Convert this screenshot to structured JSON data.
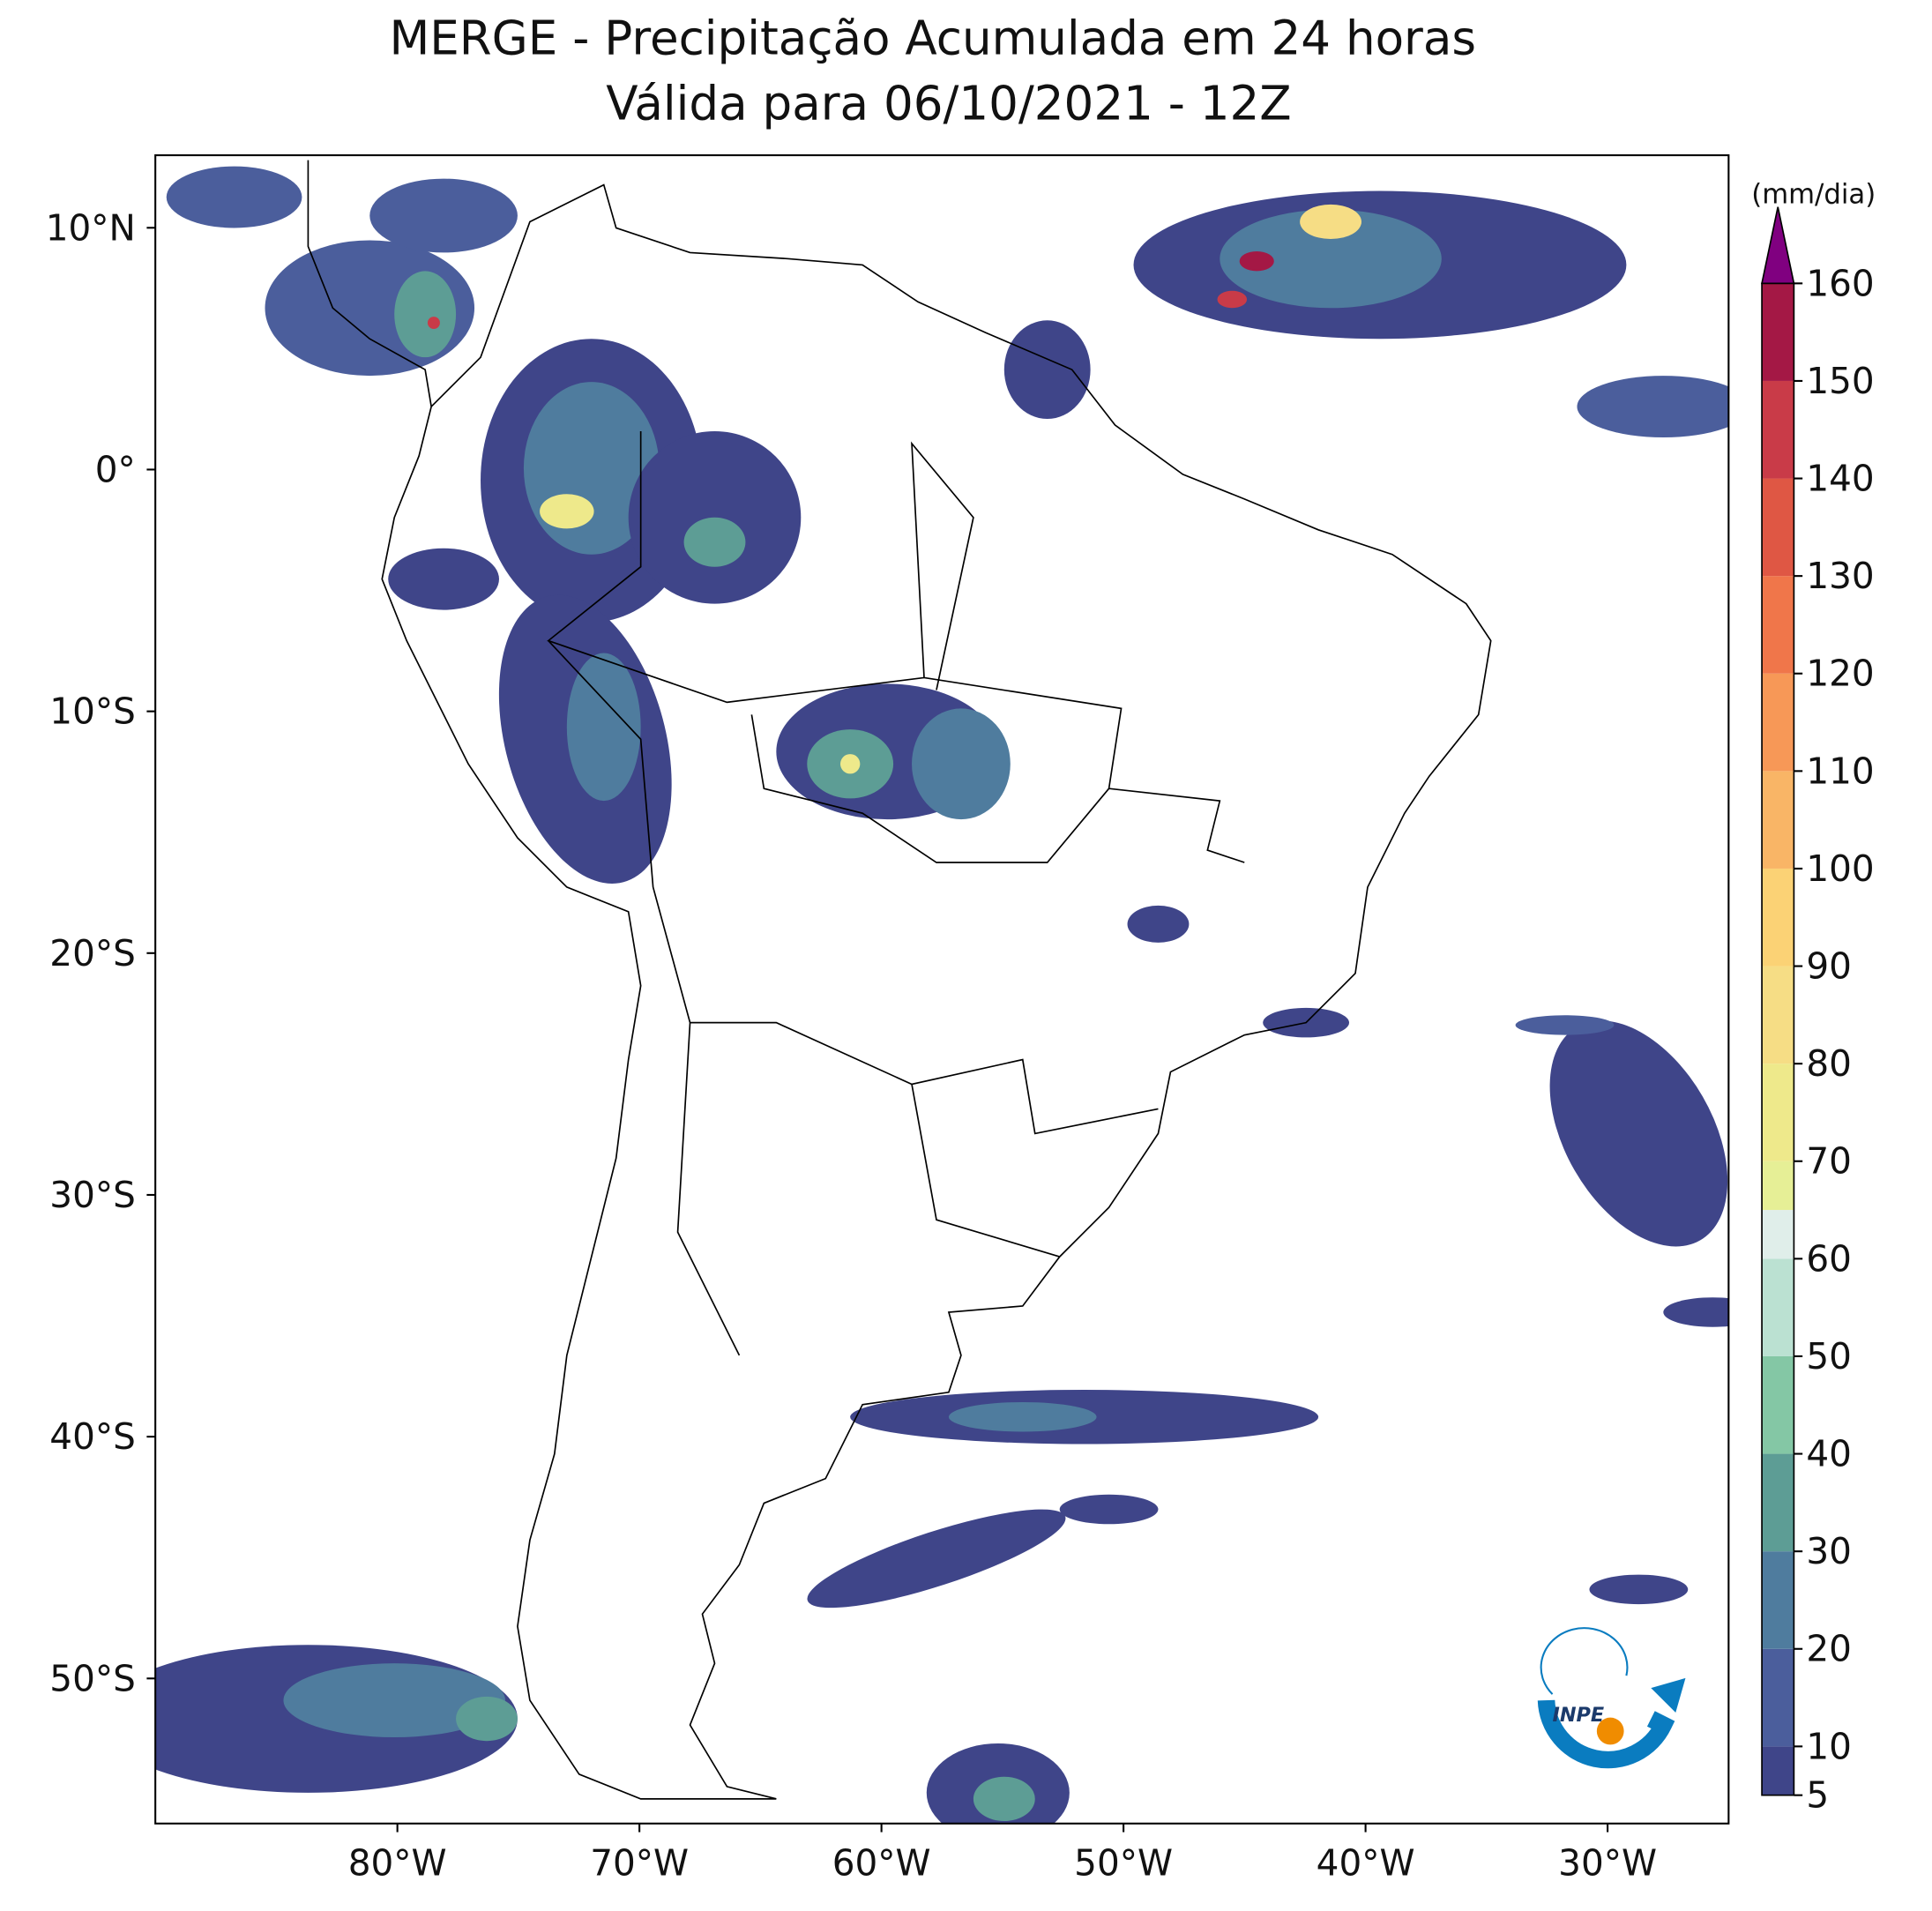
{
  "chart_data": {
    "type": "map",
    "title": "MERGE - Precipitação Acumulada em 24 horas",
    "subtitle": "Válida para 06/10/2021 - 12Z",
    "xlim": [
      -90,
      -25
    ],
    "ylim": [
      -56,
      13
    ],
    "xticks": [
      {
        "value": -80,
        "label": "80°W"
      },
      {
        "value": -70,
        "label": "70°W"
      },
      {
        "value": -60,
        "label": "60°W"
      },
      {
        "value": -50,
        "label": "50°W"
      },
      {
        "value": -40,
        "label": "40°W"
      },
      {
        "value": -30,
        "label": "30°W"
      }
    ],
    "yticks": [
      {
        "value": 10,
        "label": "10°N"
      },
      {
        "value": 0,
        "label": "0°"
      },
      {
        "value": -10,
        "label": "10°S"
      },
      {
        "value": -20,
        "label": "20°S"
      },
      {
        "value": -30,
        "label": "30°S"
      },
      {
        "value": -40,
        "label": "40°S"
      },
      {
        "value": -50,
        "label": "50°S"
      }
    ],
    "colorbar": {
      "label": "(mm/dia)",
      "clim": [
        5,
        160
      ],
      "ticks": [
        5,
        10,
        20,
        30,
        40,
        50,
        60,
        70,
        80,
        90,
        100,
        110,
        120,
        130,
        140,
        150,
        160
      ],
      "levels": [
        5,
        10,
        20,
        30,
        40,
        50,
        60,
        65,
        70,
        80,
        90,
        100,
        110,
        120,
        130,
        140,
        150,
        160
      ],
      "colors": [
        "#3f4589",
        "#4b5e9c",
        "#4f7c9e",
        "#5d9d95",
        "#84c7a5",
        "#bbe1d2",
        "#e0eeea",
        "#e6ef96",
        "#eee98b",
        "#f6dd85",
        "#fbd275",
        "#f9b566",
        "#f79857",
        "#f0764a",
        "#df5744",
        "#c93b48",
        "#a41845"
      ],
      "extend_color": "#800080"
    },
    "logo": "INPE"
  }
}
